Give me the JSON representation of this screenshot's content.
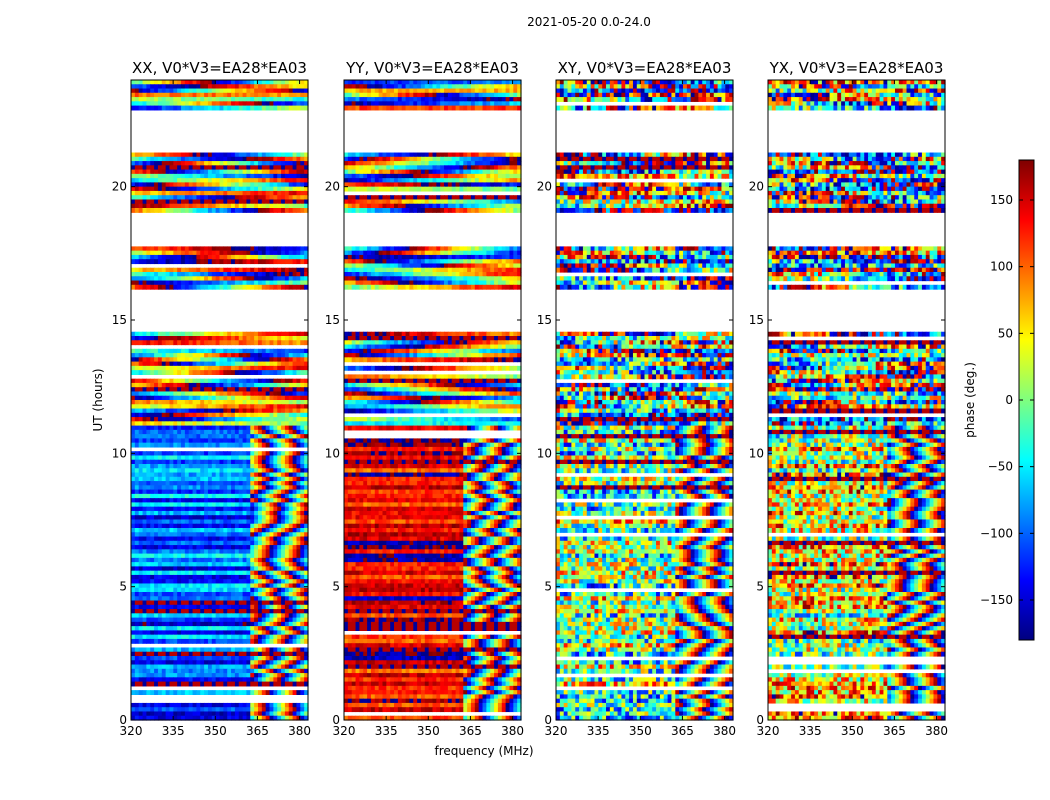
{
  "figure": {
    "suptitle": "2021-05-20 0.0-24.0",
    "ylabel": "UT (hours)",
    "xlabel": "frequency (MHz)",
    "colorbar_label": "phase (deg.)"
  },
  "colors": {
    "colormap": [
      "#00007f",
      "#0000ff",
      "#007fff",
      "#00ffff",
      "#7fff7f",
      "#ffff00",
      "#ff7f00",
      "#ff0000",
      "#7f0000"
    ]
  },
  "chart_data": {
    "type": "heatmap",
    "x_unit": "MHz",
    "y_unit": "hours",
    "xlim": [
      320,
      383
    ],
    "ylim": [
      0,
      24
    ],
    "xticks": [
      320,
      335,
      350,
      365,
      380
    ],
    "xtick_labels": [
      "320",
      "335",
      "350",
      "365",
      "380"
    ],
    "yticks": [
      0,
      5,
      10,
      15,
      20
    ],
    "ytick_labels": [
      "0",
      "5",
      "10",
      "15",
      "20"
    ],
    "colorbar": {
      "range": [
        -180,
        180
      ],
      "ticks": [
        150,
        100,
        50,
        0,
        -50,
        -100,
        -150
      ],
      "tick_labels": [
        "150",
        "100",
        "50",
        "0",
        "−50",
        "−100",
        "−150"
      ]
    },
    "no_data_ut_ranges": [
      [
        21.3,
        22.8
      ],
      [
        17.8,
        19.0
      ],
      [
        14.6,
        16.2
      ]
    ],
    "panels": [
      {
        "title": "XX, V0*V3=EA28*EA03",
        "base_phase": -100
      },
      {
        "title": "YY, V0*V3=EA28*EA03",
        "base_phase": 150
      },
      {
        "title": "XY, V0*V3=EA28*EA03",
        "base_phase": 0
      },
      {
        "title": "YX, V0*V3=EA28*EA03",
        "base_phase": 40
      }
    ]
  }
}
